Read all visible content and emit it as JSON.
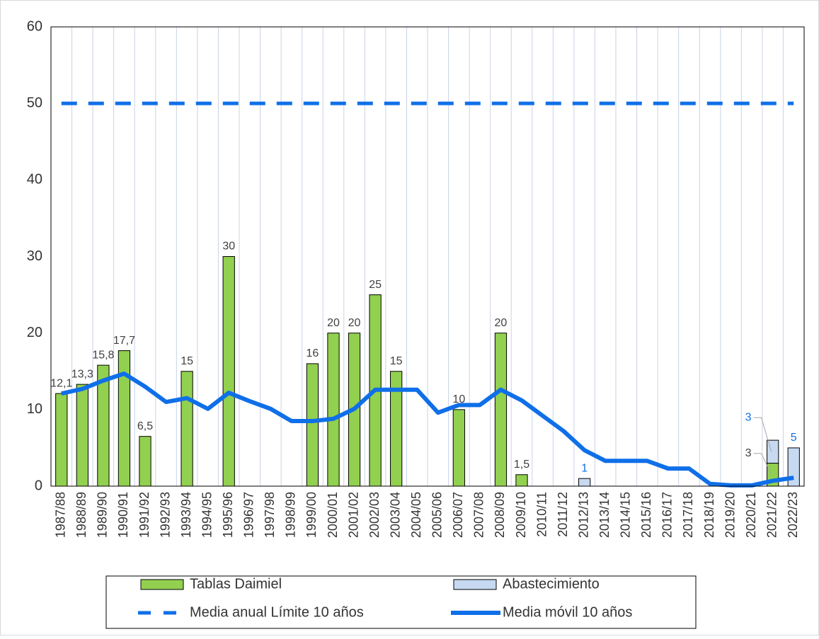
{
  "chart_data": {
    "type": "bar",
    "categories": [
      "1987/88",
      "1988/89",
      "1989/90",
      "1990/91",
      "1991/92",
      "1992/93",
      "1993/94",
      "1994/95",
      "1995/96",
      "1996/97",
      "1997/98",
      "1998/99",
      "1999/00",
      "2000/01",
      "2001/02",
      "2002/03",
      "2003/04",
      "2004/05",
      "2005/06",
      "2006/07",
      "2007/08",
      "2008/09",
      "2009/10",
      "2010/11",
      "2011/12",
      "2012/13",
      "2013/14",
      "2014/15",
      "2015/16",
      "2016/17",
      "2017/18",
      "2018/19",
      "2019/20",
      "2020/21",
      "2021/22",
      "2022/23"
    ],
    "series": [
      {
        "name": "Tablas Daimiel",
        "kind": "bar",
        "color": "#92d050",
        "label_color": "#404040",
        "values": [
          12.1,
          13.3,
          15.8,
          17.7,
          6.5,
          null,
          15,
          null,
          30,
          null,
          null,
          null,
          16,
          20,
          20,
          25,
          15,
          null,
          null,
          10,
          null,
          20,
          1.5,
          null,
          null,
          null,
          null,
          null,
          null,
          null,
          null,
          null,
          null,
          null,
          3,
          null
        ],
        "value_labels": [
          "12,1",
          "13,3",
          "15,8",
          "17,7",
          "6,5",
          null,
          "15",
          null,
          "30",
          null,
          null,
          null,
          "16",
          "20",
          "20",
          "25",
          "15",
          null,
          null,
          "10",
          null,
          "20",
          "1,5",
          null,
          null,
          null,
          null,
          null,
          null,
          null,
          null,
          null,
          null,
          null,
          "3",
          null
        ]
      },
      {
        "name": "Abastecimiento",
        "kind": "bar",
        "color": "#c6d9f1",
        "label_color": "#0f6fe8",
        "values": [
          null,
          null,
          null,
          null,
          null,
          null,
          null,
          null,
          null,
          null,
          null,
          null,
          null,
          null,
          null,
          null,
          null,
          null,
          null,
          null,
          null,
          null,
          null,
          null,
          null,
          1,
          null,
          null,
          null,
          null,
          null,
          null,
          null,
          null,
          3,
          5
        ]
      },
      {
        "name": "Media anual Límite 10 años",
        "kind": "dashed",
        "color": "#0f6fe8",
        "values": [
          50,
          50,
          50,
          50,
          50,
          50,
          50,
          50,
          50,
          50,
          50,
          50,
          50,
          50,
          50,
          50,
          50,
          50,
          50,
          50,
          50,
          50,
          50,
          50,
          50,
          50,
          50,
          50,
          50,
          50,
          50,
          50,
          50,
          50,
          50,
          50
        ]
      },
      {
        "name": "Media móvil 10 años",
        "kind": "line",
        "color": "#0f6fe8",
        "values": [
          12.1,
          12.7,
          13.8,
          14.7,
          13,
          11,
          11.5,
          10.1,
          12.2,
          11.1,
          10.1,
          8.5,
          8.5,
          8.8,
          10.1,
          12.6,
          12.6,
          12.6,
          9.6,
          10.6,
          10.6,
          12.6,
          11.2,
          9.2,
          7.2,
          4.7,
          3.3,
          3.3,
          3.3,
          2.3,
          2.3,
          0.3,
          0.1,
          0.1,
          0.7,
          1.1
        ]
      }
    ],
    "ylim": [
      0,
      60
    ],
    "yticks": [
      0,
      10,
      20,
      30,
      40,
      50,
      60
    ],
    "grid": true
  }
}
